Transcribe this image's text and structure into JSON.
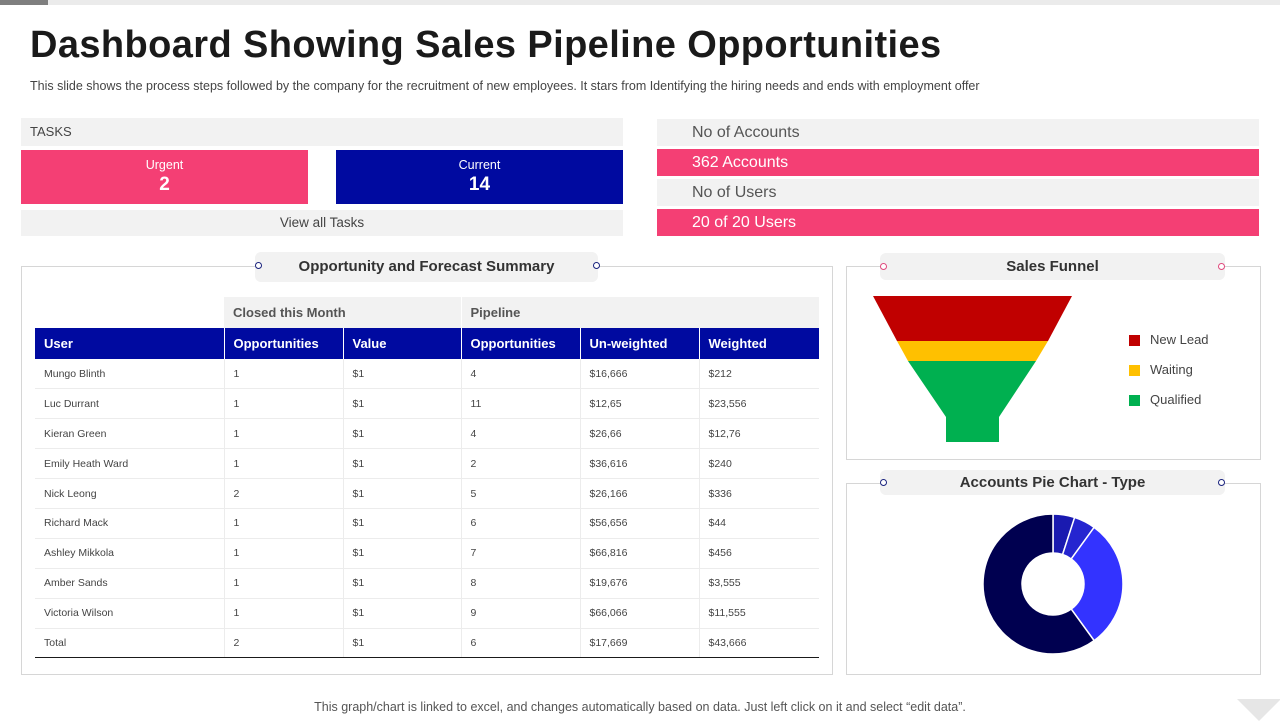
{
  "page": {
    "title": "Dashboard Showing Sales Pipeline Opportunities",
    "subtitle": "This slide shows the process steps followed  by the company for the recruitment of new employees. It stars from Identifying the hiring needs and ends with employment offer",
    "footer": "This graph/chart is linked to excel, and changes automatically based on data. Just left click on it and select “edit data”."
  },
  "tasks": {
    "header": "TASKS",
    "urgent": {
      "label": "Urgent",
      "count": "2",
      "color": "#f43f74"
    },
    "current": {
      "label": "Current",
      "count": "14",
      "color": "#000aa0"
    },
    "view_all": "View all Tasks"
  },
  "accounts": {
    "accounts_label": "No of Accounts",
    "accounts_value": "362 Accounts",
    "users_label": "No of Users",
    "users_value": "20 of 20 Users"
  },
  "summary": {
    "title": "Opportunity and Forecast Summary",
    "groups": [
      "Closed this Month",
      "Pipeline"
    ],
    "columns": [
      "User",
      "Opportunities",
      "Value",
      "Opportunities",
      "Un-weighted",
      "Weighted"
    ],
    "rows": [
      [
        "Mungo Blinth",
        "1",
        "$1",
        "4",
        "$16,666",
        "$212"
      ],
      [
        "Luc Durrant",
        "1",
        "$1",
        "11",
        "$12,65",
        "$23,556"
      ],
      [
        "Kieran Green",
        "1",
        "$1",
        "4",
        "$26,66",
        "$12,76"
      ],
      [
        "Emily  Heath Ward",
        "1",
        "$1",
        "2",
        "$36,616",
        "$240"
      ],
      [
        "Nick Leong",
        "2",
        "$1",
        "5",
        "$26,166",
        "$336"
      ],
      [
        "Richard Mack",
        "1",
        "$1",
        "6",
        "$56,656",
        "$44"
      ],
      [
        "Ashley Mikkola",
        "1",
        "$1",
        "7",
        "$66,816",
        "$456"
      ],
      [
        "Amber Sands",
        "1",
        "$1",
        "8",
        "$19,676",
        "$3,555"
      ],
      [
        "Victoria Wilson",
        "1",
        "$1",
        "9",
        "$66,066",
        "$11,555"
      ],
      [
        "Total",
        "2",
        "$1",
        "6",
        "$17,669",
        "$43,666"
      ]
    ],
    "header_color": "#000aa0"
  },
  "funnel": {
    "title": "Sales Funnel",
    "stages": [
      {
        "name": "New Lead",
        "color": "#c00000"
      },
      {
        "name": "Waiting",
        "color": "#ffc000"
      },
      {
        "name": "Qualified",
        "color": "#00b050"
      }
    ]
  },
  "pie": {
    "title": "Accounts Pie Chart - Type"
  },
  "chart_data": {
    "type": "pie",
    "title": "Accounts Pie Chart - Type",
    "style": "donut",
    "slices": [
      {
        "value": 5,
        "color": "#1a1ab0"
      },
      {
        "value": 5,
        "color": "#2525d0"
      },
      {
        "value": 30,
        "color": "#3333ff"
      },
      {
        "value": 60,
        "color": "#000050"
      }
    ]
  }
}
